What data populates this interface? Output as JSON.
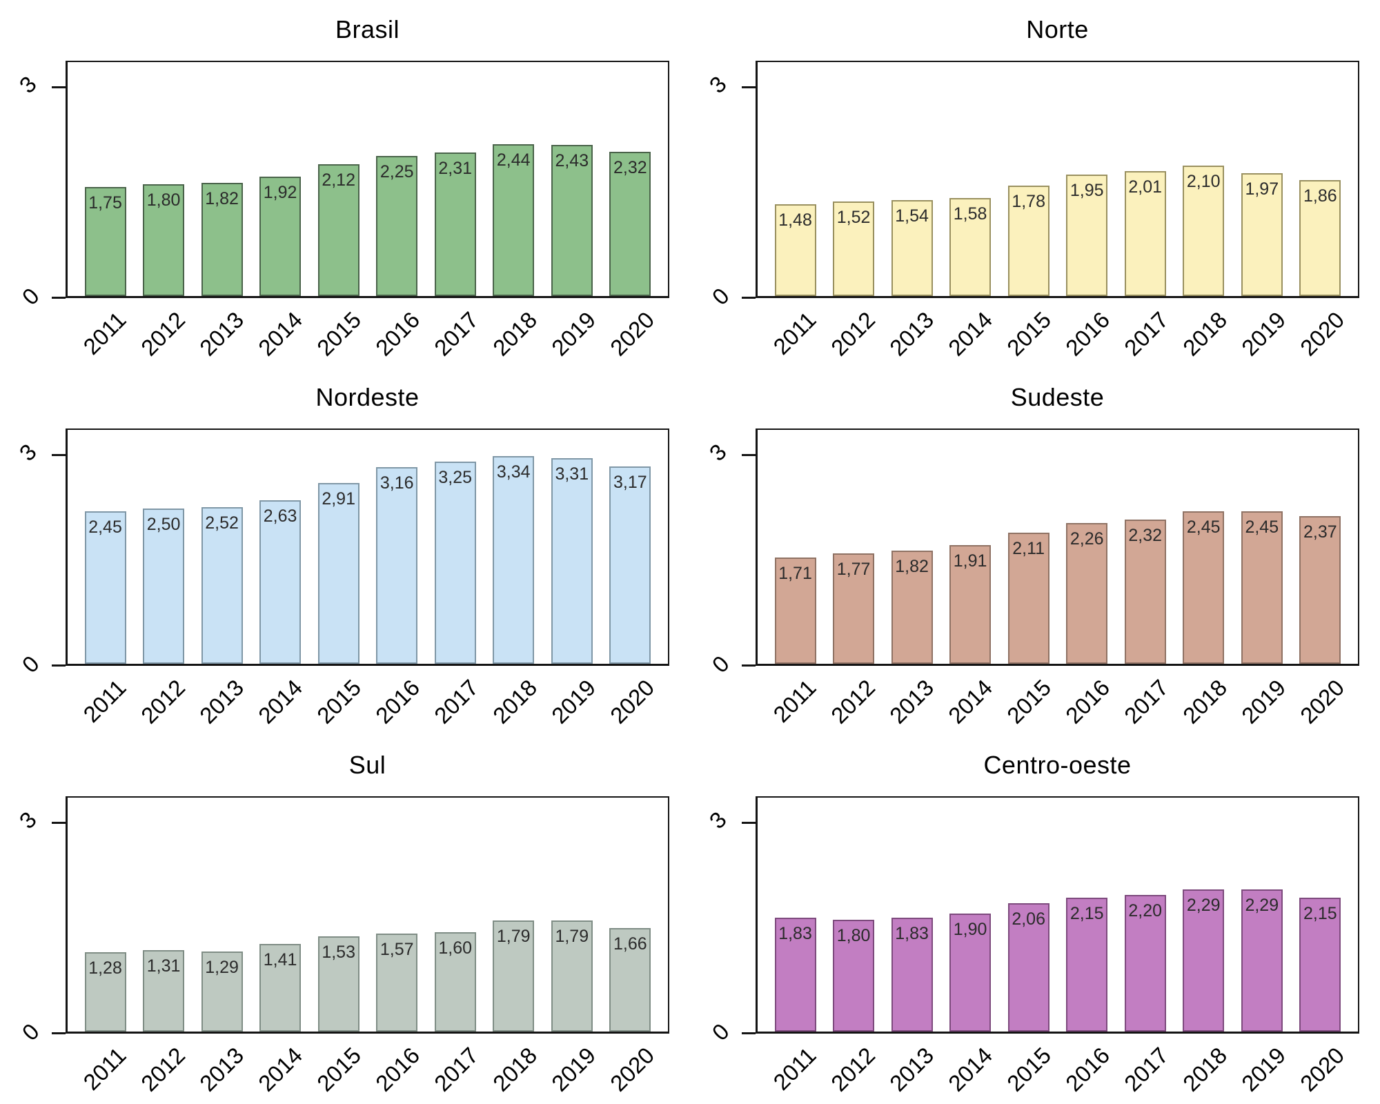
{
  "y_axis": {
    "tick_top_label": "3",
    "tick_bottom_label": "0",
    "yticks": [
      0,
      3
    ]
  },
  "years": [
    "2011",
    "2012",
    "2013",
    "2014",
    "2015",
    "2016",
    "2017",
    "2018",
    "2019",
    "2020"
  ],
  "chart_data": [
    {
      "type": "bar",
      "title": "Brasil",
      "categories": [
        "2011",
        "2012",
        "2013",
        "2014",
        "2015",
        "2016",
        "2017",
        "2018",
        "2019",
        "2020"
      ],
      "values": [
        1.75,
        1.8,
        1.82,
        1.92,
        2.12,
        2.25,
        2.31,
        2.44,
        2.43,
        2.32
      ],
      "value_labels": [
        "1,75",
        "1,80",
        "1,82",
        "1,92",
        "2,12",
        "2,25",
        "2,31",
        "2,44",
        "2,43",
        "2,32"
      ],
      "fill": "#8dc08b",
      "border": "#4a634a",
      "xlabel": "",
      "ylabel": "",
      "ylim": [
        0,
        3.4
      ],
      "yticks": [
        0,
        3
      ],
      "grid": false,
      "legend": "none"
    },
    {
      "type": "bar",
      "title": "Norte",
      "categories": [
        "2011",
        "2012",
        "2013",
        "2014",
        "2015",
        "2016",
        "2017",
        "2018",
        "2019",
        "2020"
      ],
      "values": [
        1.48,
        1.52,
        1.54,
        1.58,
        1.78,
        1.95,
        2.01,
        2.1,
        1.97,
        1.86
      ],
      "value_labels": [
        "1,48",
        "1,52",
        "1,54",
        "1,58",
        "1,78",
        "1,95",
        "2,01",
        "2,10",
        "1,97",
        "1,86"
      ],
      "fill": "#fbf1bd",
      "border": "#99905f",
      "xlabel": "",
      "ylabel": "",
      "ylim": [
        0,
        3.4
      ],
      "yticks": [
        0,
        3
      ],
      "grid": false,
      "legend": "none"
    },
    {
      "type": "bar",
      "title": "Nordeste",
      "categories": [
        "2011",
        "2012",
        "2013",
        "2014",
        "2015",
        "2016",
        "2017",
        "2018",
        "2019",
        "2020"
      ],
      "values": [
        2.45,
        2.5,
        2.52,
        2.63,
        2.91,
        3.16,
        3.25,
        3.34,
        3.31,
        3.17
      ],
      "value_labels": [
        "2,45",
        "2,50",
        "2,52",
        "2,63",
        "2,91",
        "3,16",
        "3,25",
        "3,34",
        "3,31",
        "3,17"
      ],
      "fill": "#c9e2f5",
      "border": "#7f97a6",
      "xlabel": "",
      "ylabel": "",
      "ylim": [
        0,
        3.4
      ],
      "yticks": [
        0,
        3
      ],
      "grid": false,
      "legend": "none"
    },
    {
      "type": "bar",
      "title": "Sudeste",
      "categories": [
        "2011",
        "2012",
        "2013",
        "2014",
        "2015",
        "2016",
        "2017",
        "2018",
        "2019",
        "2020"
      ],
      "values": [
        1.71,
        1.77,
        1.82,
        1.91,
        2.11,
        2.26,
        2.32,
        2.45,
        2.45,
        2.37
      ],
      "value_labels": [
        "1,71",
        "1,77",
        "1,82",
        "1,91",
        "2,11",
        "2,26",
        "2,32",
        "2,45",
        "2,45",
        "2,37"
      ],
      "fill": "#d2a795",
      "border": "#8f7264",
      "xlabel": "",
      "ylabel": "",
      "ylim": [
        0,
        3.4
      ],
      "yticks": [
        0,
        3
      ],
      "grid": false,
      "legend": "none"
    },
    {
      "type": "bar",
      "title": "Sul",
      "categories": [
        "2011",
        "2012",
        "2013",
        "2014",
        "2015",
        "2016",
        "2017",
        "2018",
        "2019",
        "2020"
      ],
      "values": [
        1.28,
        1.31,
        1.29,
        1.41,
        1.53,
        1.57,
        1.6,
        1.79,
        1.79,
        1.66
      ],
      "value_labels": [
        "1,28",
        "1,31",
        "1,29",
        "1,41",
        "1,53",
        "1,57",
        "1,60",
        "1,79",
        "1,79",
        "1,66"
      ],
      "fill": "#bec9c1",
      "border": "#7f8d85",
      "xlabel": "",
      "ylabel": "",
      "ylim": [
        0,
        3.4
      ],
      "yticks": [
        0,
        3
      ],
      "grid": false,
      "legend": "none"
    },
    {
      "type": "bar",
      "title": "Centro-oeste",
      "categories": [
        "2011",
        "2012",
        "2013",
        "2014",
        "2015",
        "2016",
        "2017",
        "2018",
        "2019",
        "2020"
      ],
      "values": [
        1.83,
        1.8,
        1.83,
        1.9,
        2.06,
        2.15,
        2.2,
        2.29,
        2.29,
        2.15
      ],
      "value_labels": [
        "1,83",
        "1,80",
        "1,83",
        "1,90",
        "2,06",
        "2,15",
        "2,20",
        "2,29",
        "2,29",
        "2,15"
      ],
      "fill": "#c27ec2",
      "border": "#7d4a7d",
      "xlabel": "",
      "ylabel": "",
      "ylim": [
        0,
        3.4
      ],
      "yticks": [
        0,
        3
      ],
      "grid": false,
      "legend": "none"
    }
  ]
}
